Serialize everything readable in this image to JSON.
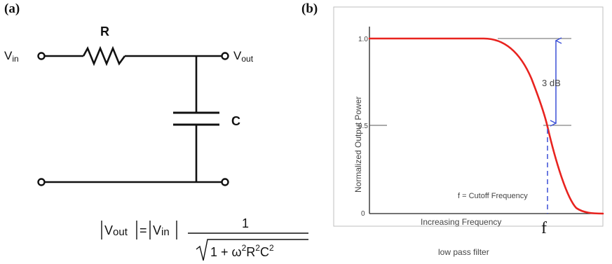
{
  "panel_a": {
    "label": "(a)",
    "resistor_label": "R",
    "capacitor_label": "C",
    "vin": {
      "base": "V",
      "sub": "in"
    },
    "vout": {
      "base": "V",
      "sub": "out"
    },
    "equation": {
      "lhs_base": "V",
      "lhs_sub": "out",
      "eq": "=",
      "rhs_base": "V",
      "rhs_sub": "in",
      "numerator": "1",
      "den_prefix": "1 + ω",
      "den_exp1": "2",
      "den_R": "R",
      "den_exp2": "2",
      "den_C": "C",
      "den_exp3": "2"
    }
  },
  "panel_b": {
    "label": "(b)",
    "ylabel": "Normalized Output Power",
    "xlabel": "Increasing Frequency",
    "caption": "low pass filter",
    "ticks": {
      "y_top": "1.0",
      "y_mid": "0.5",
      "y_zero": "0"
    },
    "annotation_db": "3 dB",
    "cutoff_text": "f = Cutoff Frequency",
    "f_mark": "f",
    "curve_color": "#e8231f",
    "arrow_color": "#3a4fd6"
  }
}
